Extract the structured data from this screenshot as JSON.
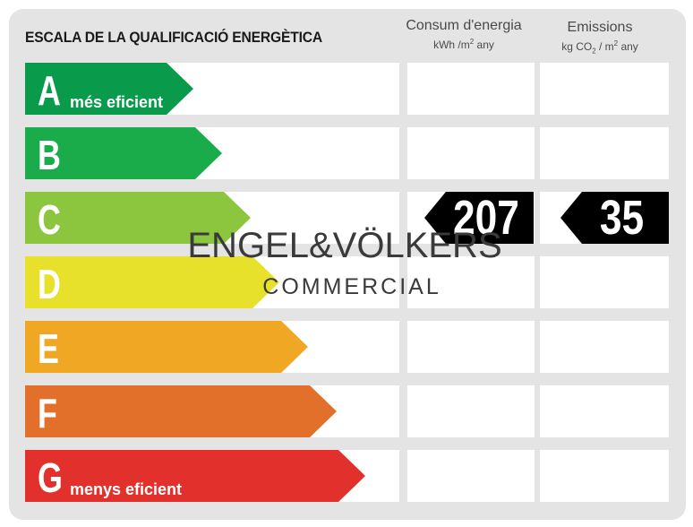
{
  "title": "ESCALA DE LA QUALIFICACIÓ ENERGÈTICA",
  "columns": {
    "consumption": {
      "label": "Consum d'energia",
      "unit_pre": "kWh /m",
      "unit_sup": "2",
      "unit_post": " any"
    },
    "emissions": {
      "label": "Emissions",
      "unit_pre": "kg CO",
      "unit_sub": "2",
      "unit_mid": " / m",
      "unit_sup": "2",
      "unit_post": " any"
    }
  },
  "ratings": [
    {
      "letter": "A",
      "sublabel": "més eficient",
      "color": "#0a9a4c"
    },
    {
      "letter": "B",
      "sublabel": "",
      "color": "#1aac4a"
    },
    {
      "letter": "C",
      "sublabel": "",
      "color": "#8cc63f"
    },
    {
      "letter": "D",
      "sublabel": "",
      "color": "#e8e12b"
    },
    {
      "letter": "E",
      "sublabel": "",
      "color": "#f0a824"
    },
    {
      "letter": "F",
      "sublabel": "",
      "color": "#e2702a"
    },
    {
      "letter": "G",
      "sublabel": "menys eficient",
      "color": "#e2312c"
    }
  ],
  "result": {
    "rating": "C",
    "consumption": "207",
    "emissions": "35"
  },
  "watermark": {
    "brand": "ENGEL&VÖLKERS",
    "division": "COMMERCIAL"
  }
}
